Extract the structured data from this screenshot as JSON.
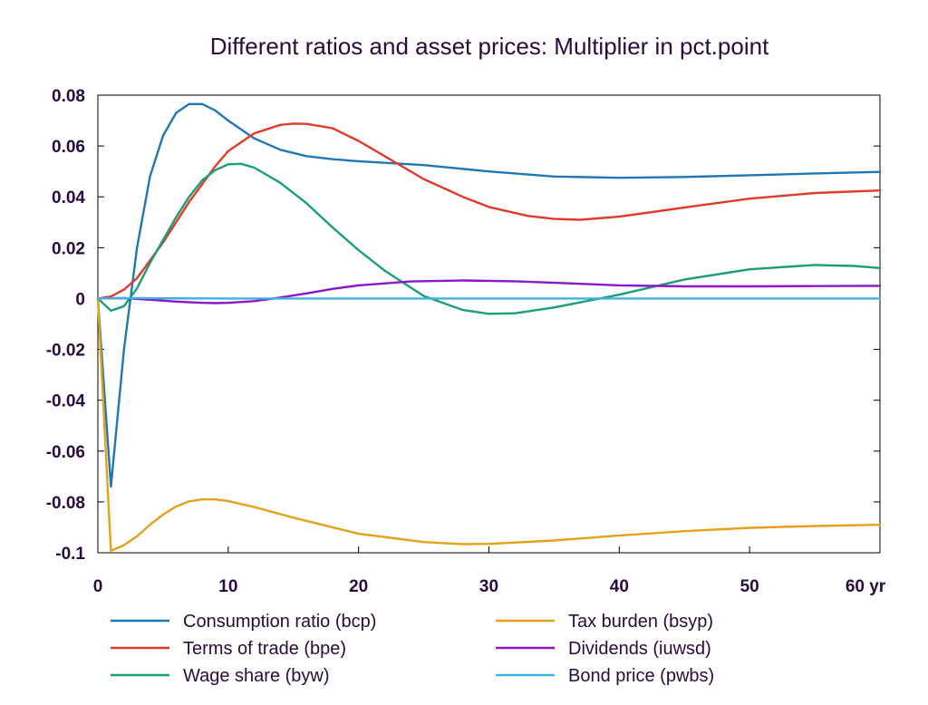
{
  "chart_data": {
    "type": "line",
    "title": "Different ratios and asset prices: Multiplier in pct.point",
    "xlabel": "",
    "ylabel": "",
    "x_unit_label": "yr",
    "xlim": [
      0,
      60
    ],
    "ylim": [
      -0.1,
      0.08
    ],
    "x_ticks": [
      0,
      10,
      20,
      30,
      40,
      50,
      60
    ],
    "x_tick_labels": [
      "0",
      "10",
      "20",
      "30",
      "40",
      "50",
      "60 yr"
    ],
    "y_ticks": [
      0.08,
      0.06,
      0.04,
      0.02,
      0,
      -0.02,
      -0.04,
      -0.06,
      -0.08,
      -0.1
    ],
    "y_tick_labels": [
      "0.08",
      "0.06",
      "0.04",
      "0.02",
      "0",
      "-0.02",
      "-0.04",
      "-0.06",
      "-0.08",
      "-0.1"
    ],
    "grid": false,
    "legend_position": "bottom",
    "zero_line_color": "#1a3a6b",
    "series": [
      {
        "name": "Consumption ratio (bcp)",
        "color": "#1f77b4",
        "points": [
          [
            0,
            0
          ],
          [
            1,
            -0.074
          ],
          [
            2,
            -0.02
          ],
          [
            3,
            0.02
          ],
          [
            4,
            0.048
          ],
          [
            5,
            0.064
          ],
          [
            6,
            0.073
          ],
          [
            7,
            0.0765
          ],
          [
            8,
            0.0765
          ],
          [
            9,
            0.074
          ],
          [
            10,
            0.07
          ],
          [
            12,
            0.063
          ],
          [
            14,
            0.0585
          ],
          [
            16,
            0.056
          ],
          [
            18,
            0.0548
          ],
          [
            20,
            0.054
          ],
          [
            25,
            0.0525
          ],
          [
            30,
            0.05
          ],
          [
            35,
            0.048
          ],
          [
            40,
            0.0475
          ],
          [
            45,
            0.0478
          ],
          [
            50,
            0.0485
          ],
          [
            55,
            0.0492
          ],
          [
            60,
            0.0498
          ]
        ]
      },
      {
        "name": "Terms of trade (bpe)",
        "color": "#e03a2a",
        "points": [
          [
            0,
            0
          ],
          [
            1,
            0.0008
          ],
          [
            2,
            0.0035
          ],
          [
            3,
            0.008
          ],
          [
            4,
            0.015
          ],
          [
            5,
            0.022
          ],
          [
            6,
            0.03
          ],
          [
            7,
            0.038
          ],
          [
            8,
            0.045
          ],
          [
            9,
            0.052
          ],
          [
            10,
            0.058
          ],
          [
            12,
            0.065
          ],
          [
            14,
            0.0683
          ],
          [
            15,
            0.0688
          ],
          [
            16,
            0.0687
          ],
          [
            18,
            0.067
          ],
          [
            20,
            0.062
          ],
          [
            22,
            0.056
          ],
          [
            25,
            0.047
          ],
          [
            28,
            0.04
          ],
          [
            30,
            0.036
          ],
          [
            33,
            0.0325
          ],
          [
            35,
            0.0313
          ],
          [
            37,
            0.031
          ],
          [
            40,
            0.0322
          ],
          [
            45,
            0.0358
          ],
          [
            50,
            0.0393
          ],
          [
            55,
            0.0415
          ],
          [
            60,
            0.0425
          ]
        ]
      },
      {
        "name": "Wage share (byw)",
        "color": "#1a9e76",
        "points": [
          [
            0,
            0
          ],
          [
            1,
            -0.0048
          ],
          [
            2,
            -0.003
          ],
          [
            3,
            0.004
          ],
          [
            4,
            0.014
          ],
          [
            5,
            0.023
          ],
          [
            6,
            0.032
          ],
          [
            7,
            0.04
          ],
          [
            8,
            0.0465
          ],
          [
            9,
            0.0505
          ],
          [
            10,
            0.0528
          ],
          [
            11,
            0.053
          ],
          [
            12,
            0.0515
          ],
          [
            14,
            0.0455
          ],
          [
            16,
            0.0375
          ],
          [
            18,
            0.028
          ],
          [
            20,
            0.019
          ],
          [
            22,
            0.011
          ],
          [
            25,
            0.001
          ],
          [
            28,
            -0.0045
          ],
          [
            30,
            -0.006
          ],
          [
            32,
            -0.0058
          ],
          [
            35,
            -0.0035
          ],
          [
            40,
            0.0015
          ],
          [
            45,
            0.0075
          ],
          [
            50,
            0.0115
          ],
          [
            55,
            0.0132
          ],
          [
            58,
            0.0128
          ],
          [
            60,
            0.012
          ]
        ]
      },
      {
        "name": "Tax burden (bsyp)",
        "color": "#e3a21a",
        "points": [
          [
            0,
            0
          ],
          [
            1,
            -0.0992
          ],
          [
            2,
            -0.097
          ],
          [
            3,
            -0.0935
          ],
          [
            4,
            -0.089
          ],
          [
            5,
            -0.085
          ],
          [
            6,
            -0.0818
          ],
          [
            7,
            -0.0798
          ],
          [
            8,
            -0.079
          ],
          [
            9,
            -0.079
          ],
          [
            10,
            -0.0797
          ],
          [
            12,
            -0.082
          ],
          [
            15,
            -0.0862
          ],
          [
            20,
            -0.0925
          ],
          [
            25,
            -0.0958
          ],
          [
            28,
            -0.0966
          ],
          [
            30,
            -0.0965
          ],
          [
            35,
            -0.0952
          ],
          [
            40,
            -0.0932
          ],
          [
            45,
            -0.0915
          ],
          [
            50,
            -0.0902
          ],
          [
            55,
            -0.0895
          ],
          [
            60,
            -0.089
          ]
        ]
      },
      {
        "name": "Dividends (iuwsd)",
        "color": "#8a17c8",
        "points": [
          [
            0,
            0
          ],
          [
            2,
            0.0002
          ],
          [
            4,
            -0.0005
          ],
          [
            6,
            -0.0012
          ],
          [
            8,
            -0.0017
          ],
          [
            9,
            -0.0018
          ],
          [
            10,
            -0.0017
          ],
          [
            12,
            -0.001
          ],
          [
            14,
            0.0004
          ],
          [
            16,
            0.002
          ],
          [
            18,
            0.0038
          ],
          [
            20,
            0.0052
          ],
          [
            24,
            0.0067
          ],
          [
            28,
            0.0071
          ],
          [
            32,
            0.0068
          ],
          [
            36,
            0.006
          ],
          [
            40,
            0.0052
          ],
          [
            45,
            0.0048
          ],
          [
            50,
            0.0048
          ],
          [
            55,
            0.0049
          ],
          [
            60,
            0.005
          ]
        ]
      },
      {
        "name": "Bond price (pwbs)",
        "color": "#3fb0e6",
        "points": [
          [
            0,
            0
          ],
          [
            3,
            0.0002
          ],
          [
            6,
            0.0001
          ],
          [
            10,
            0
          ],
          [
            20,
            0
          ],
          [
            30,
            0
          ],
          [
            40,
            0
          ],
          [
            50,
            0
          ],
          [
            60,
            0
          ]
        ]
      }
    ]
  }
}
